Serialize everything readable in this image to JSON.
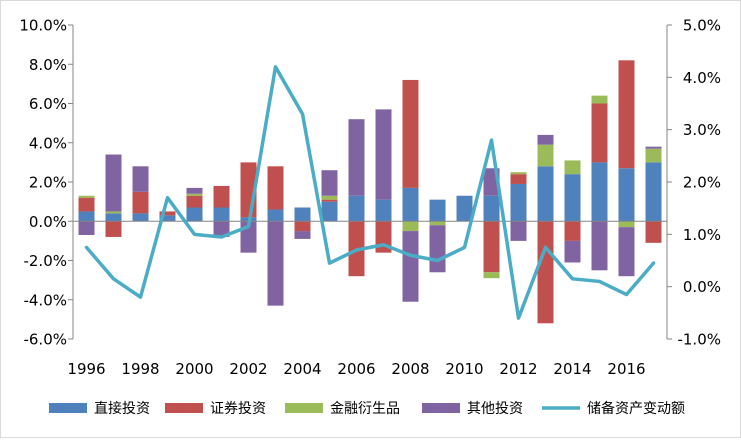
{
  "chart_data": {
    "type": "bar",
    "stacked": true,
    "categories": [
      "1996",
      "1997",
      "1998",
      "1999",
      "2000",
      "2001",
      "2002",
      "2003",
      "2004",
      "2005",
      "2006",
      "2007",
      "2008",
      "2009",
      "2010",
      "2011",
      "2012",
      "2013",
      "2014",
      "2015",
      "2016",
      "2017"
    ],
    "x_tick_labels": [
      "1996",
      "1998",
      "2000",
      "2002",
      "2004",
      "2006",
      "2008",
      "2010",
      "2012",
      "2014",
      "2016"
    ],
    "y_left": {
      "ylim": [
        -6.0,
        10.0
      ],
      "ticks": [
        "-6.0%",
        "-4.0%",
        "-2.0%",
        "0.0%",
        "2.0%",
        "4.0%",
        "6.0%",
        "8.0%",
        "10.0%"
      ]
    },
    "y_right": {
      "ylim": [
        -1.0,
        5.0
      ],
      "ticks": [
        "-1.0%",
        "0.0%",
        "1.0%",
        "2.0%",
        "3.0%",
        "4.0%",
        "5.0%"
      ]
    },
    "series": [
      {
        "name": "直接投资",
        "kind": "bar",
        "axis": "left",
        "color": "#4f81bd",
        "values": [
          0.5,
          0.4,
          0.4,
          0.3,
          0.7,
          0.7,
          0.2,
          0.6,
          0.7,
          1.0,
          1.3,
          1.1,
          1.7,
          1.1,
          1.3,
          1.3,
          1.9,
          2.8,
          2.4,
          3.0,
          2.7,
          3.0
        ]
      },
      {
        "name": "证券投资",
        "kind": "bar",
        "axis": "left",
        "color": "#c0504d",
        "values": [
          0.7,
          -0.8,
          1.1,
          0.2,
          0.6,
          1.1,
          2.8,
          2.2,
          -0.5,
          0.1,
          -2.8,
          -1.6,
          5.5,
          0.0,
          0.0,
          -2.6,
          0.5,
          -5.2,
          -1.0,
          3.0,
          5.5,
          -1.1
        ]
      },
      {
        "name": "金融衍生品",
        "kind": "bar",
        "axis": "left",
        "color": "#9bbb59",
        "values": [
          0.1,
          0.1,
          0.0,
          0.0,
          0.1,
          0.0,
          0.0,
          0.0,
          0.0,
          0.2,
          0.0,
          0.0,
          -0.5,
          -0.2,
          0.0,
          -0.3,
          0.1,
          1.1,
          0.7,
          0.4,
          -0.3,
          0.7
        ]
      },
      {
        "name": "其他投资",
        "kind": "bar",
        "axis": "left",
        "color": "#8064a2",
        "values": [
          -0.7,
          2.9,
          1.3,
          0.0,
          0.3,
          -0.8,
          -1.6,
          -4.3,
          -0.4,
          1.3,
          3.9,
          4.6,
          -3.6,
          -2.4,
          0.0,
          1.4,
          -1.0,
          0.5,
          -1.1,
          -2.5,
          -2.5,
          0.1
        ]
      },
      {
        "name": "储备资产变动额",
        "kind": "line",
        "axis": "right",
        "color": "#4bacc6",
        "values": [
          0.75,
          0.15,
          -0.2,
          1.7,
          1.0,
          0.95,
          1.15,
          4.2,
          3.3,
          0.45,
          0.7,
          0.8,
          0.6,
          0.5,
          0.75,
          2.8,
          -0.6,
          0.75,
          0.15,
          0.1,
          -0.15,
          0.45
        ]
      }
    ],
    "legend_position": "bottom",
    "grid": false
  }
}
